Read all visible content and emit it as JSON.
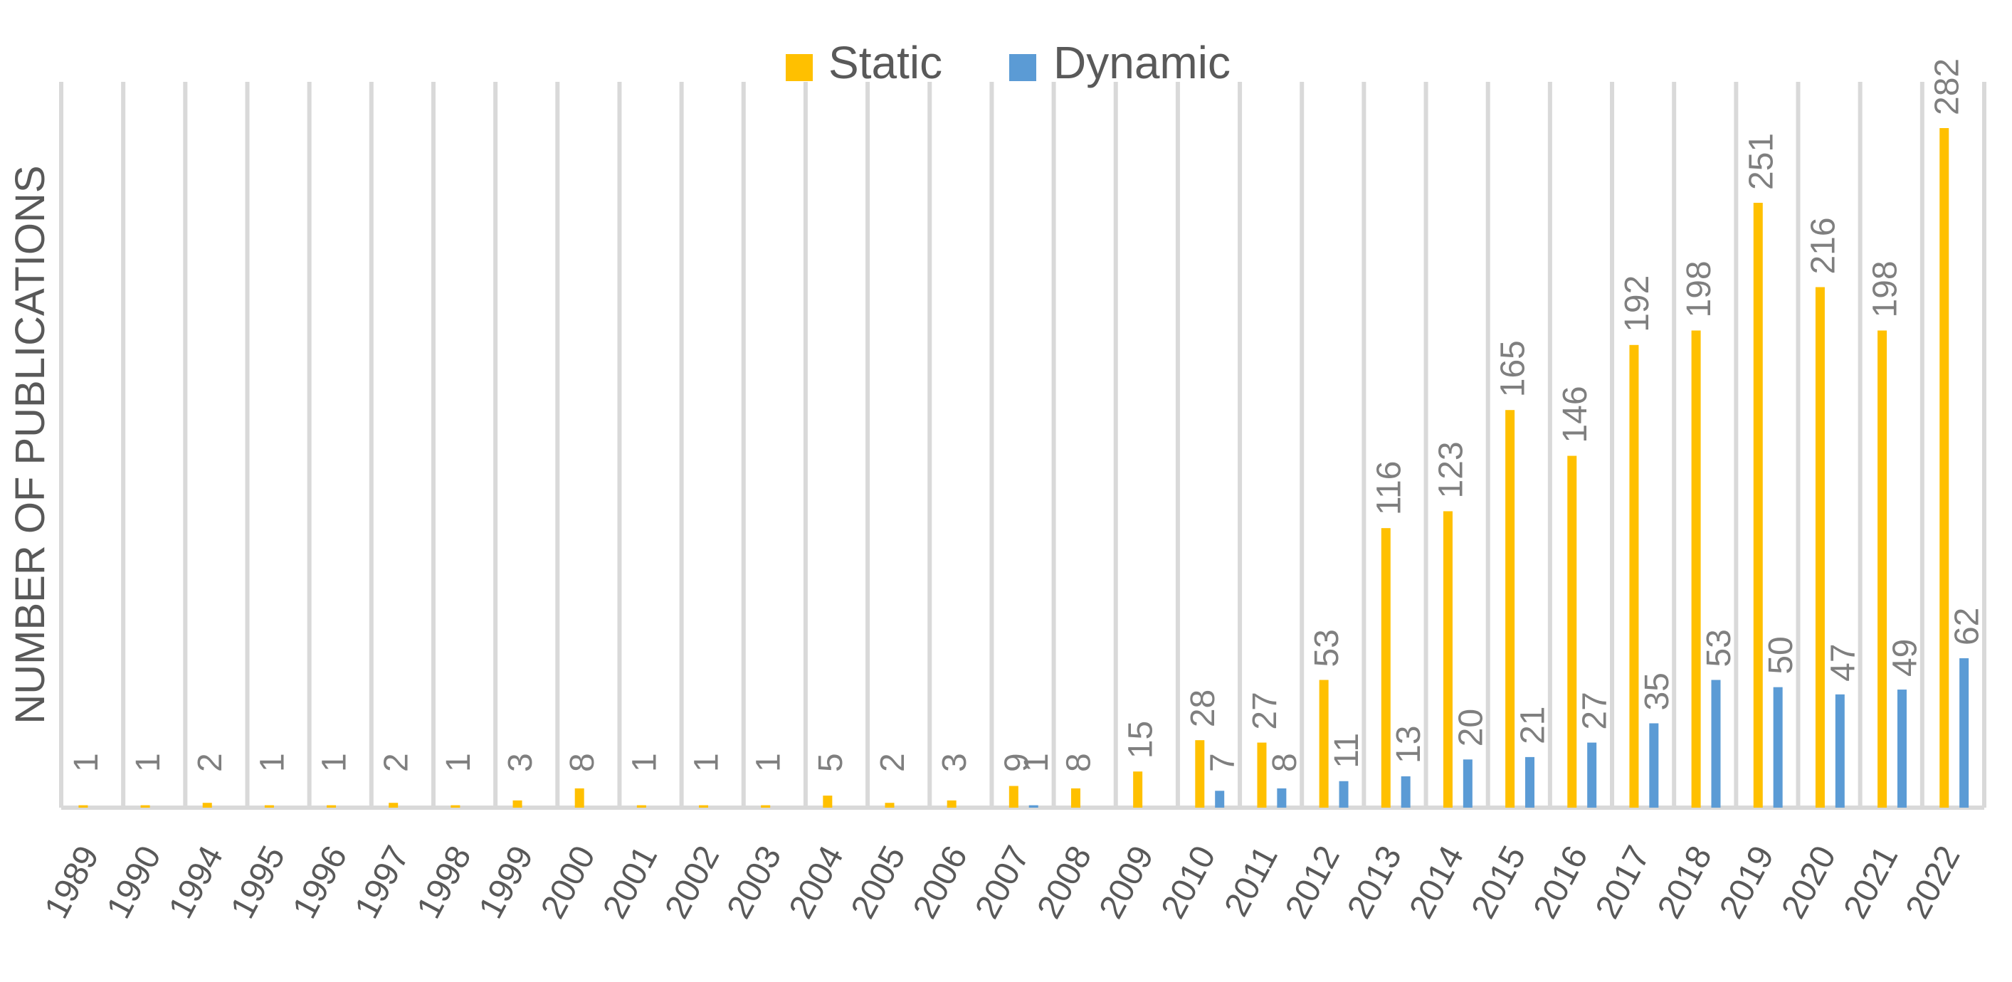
{
  "chart_data": {
    "type": "bar",
    "title": "",
    "xlabel": "",
    "ylabel": "NUMBER OF PUBLICATIONS",
    "ylim": [
      0,
      300
    ],
    "grid": "vertical",
    "legend_position": "top",
    "colors": {
      "Static": "#ffc000",
      "Dynamic": "#5b9bd5"
    },
    "categories": [
      "1989",
      "1990",
      "1994",
      "1995",
      "1996",
      "1997",
      "1998",
      "1999",
      "2000",
      "2001",
      "2002",
      "2003",
      "2004",
      "2005",
      "2006",
      "2007",
      "2008",
      "2009",
      "2010",
      "2011",
      "2012",
      "2013",
      "2014",
      "2015",
      "2016",
      "2017",
      "2018",
      "2019",
      "2020",
      "2021",
      "2022"
    ],
    "series": [
      {
        "name": "Static",
        "values": [
          1,
          1,
          2,
          1,
          1,
          2,
          1,
          3,
          8,
          1,
          1,
          1,
          5,
          2,
          3,
          9,
          8,
          15,
          28,
          27,
          53,
          116,
          123,
          165,
          146,
          192,
          198,
          251,
          216,
          198,
          282
        ]
      },
      {
        "name": "Dynamic",
        "values": [
          null,
          null,
          null,
          null,
          null,
          null,
          null,
          null,
          null,
          null,
          null,
          null,
          null,
          null,
          null,
          1,
          null,
          null,
          7,
          8,
          11,
          13,
          20,
          21,
          27,
          35,
          53,
          50,
          47,
          49,
          62
        ]
      }
    ]
  }
}
